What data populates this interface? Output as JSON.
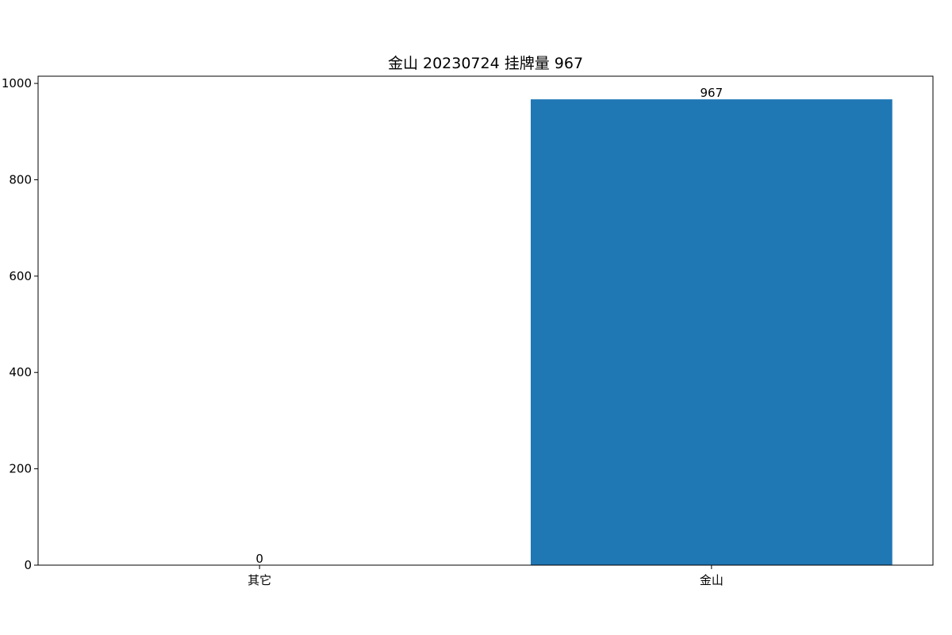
{
  "chart_data": {
    "type": "bar",
    "title": "金山 20230724 挂牌量 967",
    "categories": [
      "其它",
      "金山"
    ],
    "values": [
      0,
      967
    ],
    "value_labels": [
      "0",
      "967"
    ],
    "xlabel": "",
    "ylabel": "",
    "ylim": [
      0,
      1015
    ],
    "yticks": [
      0,
      200,
      400,
      600,
      800,
      1000
    ],
    "ytick_labels": [
      "0",
      "200",
      "400",
      "600",
      "800",
      "1000"
    ],
    "grid": false,
    "legend": "none",
    "bar_color": "#1f77b4"
  }
}
